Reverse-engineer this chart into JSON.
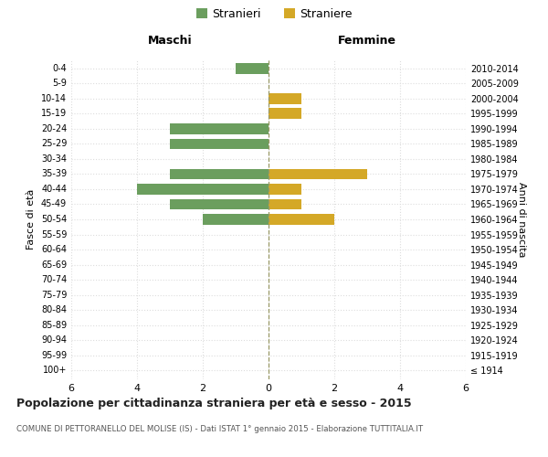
{
  "age_groups": [
    "100+",
    "95-99",
    "90-94",
    "85-89",
    "80-84",
    "75-79",
    "70-74",
    "65-69",
    "60-64",
    "55-59",
    "50-54",
    "45-49",
    "40-44",
    "35-39",
    "30-34",
    "25-29",
    "20-24",
    "15-19",
    "10-14",
    "5-9",
    "0-4"
  ],
  "birth_years": [
    "≤ 1914",
    "1915-1919",
    "1920-1924",
    "1925-1929",
    "1930-1934",
    "1935-1939",
    "1940-1944",
    "1945-1949",
    "1950-1954",
    "1955-1959",
    "1960-1964",
    "1965-1969",
    "1970-1974",
    "1975-1979",
    "1980-1984",
    "1985-1989",
    "1990-1994",
    "1995-1999",
    "2000-2004",
    "2005-2009",
    "2010-2014"
  ],
  "maschi": [
    0,
    0,
    0,
    0,
    0,
    0,
    0,
    0,
    0,
    0,
    2,
    3,
    4,
    3,
    0,
    3,
    3,
    0,
    0,
    0,
    1
  ],
  "femmine": [
    0,
    0,
    0,
    0,
    0,
    0,
    0,
    0,
    0,
    0,
    2,
    1,
    1,
    3,
    0,
    0,
    0,
    1,
    1,
    0,
    0
  ],
  "color_maschi": "#6b9e5e",
  "color_femmine": "#d4a827",
  "title": "Popolazione per cittadinanza straniera per età e sesso - 2015",
  "subtitle": "COMUNE DI PETTORANELLO DEL MOLISE (IS) - Dati ISTAT 1° gennaio 2015 - Elaborazione TUTTITALIA.IT",
  "legend_maschi": "Stranieri",
  "legend_femmine": "Straniere",
  "header_left": "Maschi",
  "header_right": "Femmine",
  "ylabel_left": "Fasce di età",
  "ylabel_right": "Anni di nascita",
  "xlim": 6,
  "background_color": "#ffffff",
  "grid_color": "#dddddd",
  "center_line_color": "#999966"
}
